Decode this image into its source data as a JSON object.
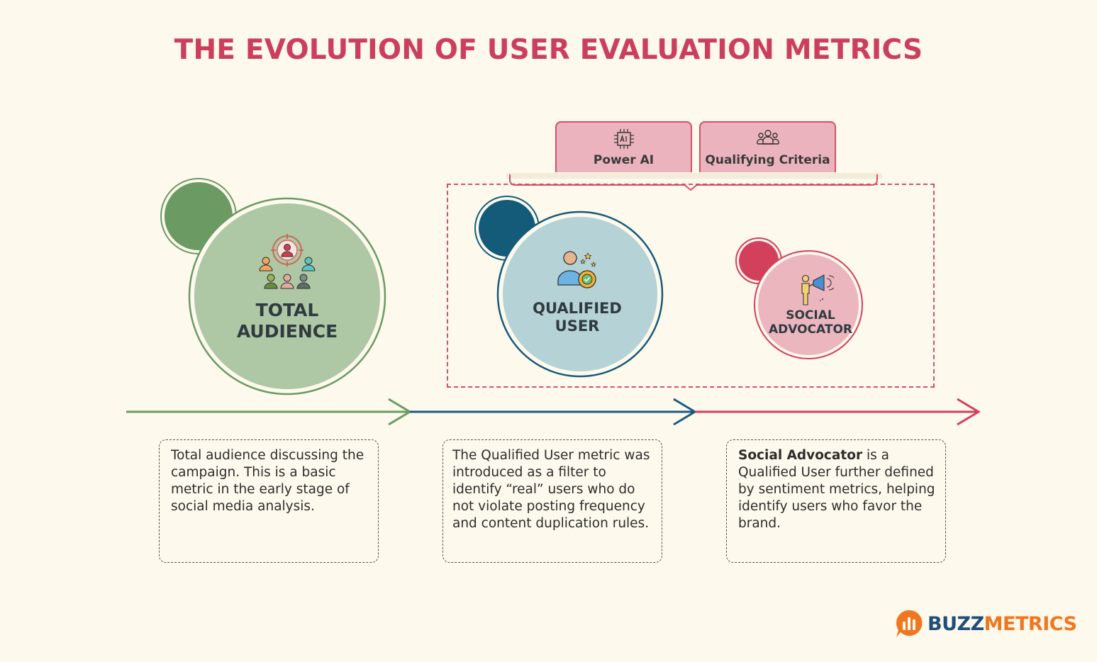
{
  "title": "THE EVOLUTION OF USER EVALUATION METRICS",
  "filters": [
    {
      "label": "Power AI",
      "icon": "ai-chip-icon"
    },
    {
      "label": "Qualifying Criteria",
      "icon": "group-icon"
    }
  ],
  "stages": [
    {
      "name_line1": "TOTAL",
      "name_line2": "AUDIENCE",
      "icon": "target-audience-icon",
      "color": "#6b9a62",
      "description": "Total audience discussing the campaign. This is a basic metric in the early stage of social media analysis."
    },
    {
      "name_line1": "QUALIFIED",
      "name_line2": "USER",
      "icon": "verified-user-icon",
      "color": "#145b7a",
      "description": "The Qualified User metric was introduced as a filter to identify “real” users who do not violate posting frequency and content duplication rules."
    },
    {
      "name_line1": "SOCIAL",
      "name_line2": "ADVOCATOR",
      "icon": "megaphone-person-icon",
      "color": "#d2405c",
      "description_bold": "Social Advocator",
      "description": " is a Qualified User further defined by sentiment metrics, helping identify users who favor the brand."
    }
  ],
  "brand": {
    "part1": "BUZZ",
    "part2": "METRICS",
    "color1": "#1f4e79",
    "color2": "#f0771f"
  }
}
